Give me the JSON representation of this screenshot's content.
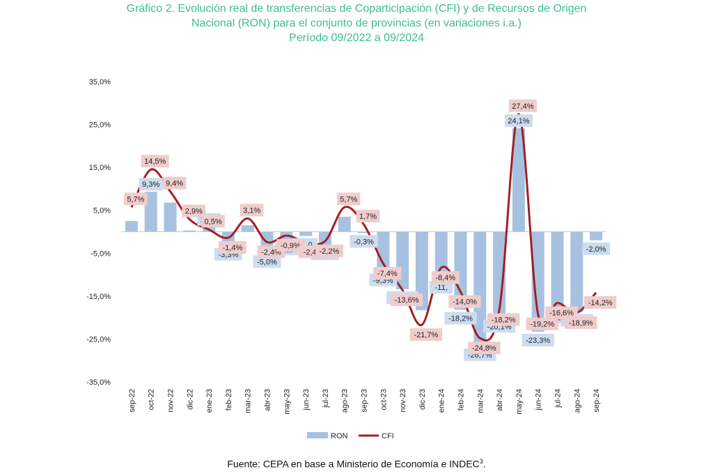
{
  "title_lines": [
    "Gráfico 2. Evolución real de transferencias de Coparticipación (CFI) y de Recursos de Origen",
    "Nacional (RON) para el conjunto de provincias (en variaciones i.a.)",
    "Período 09/2022 a 09/2024"
  ],
  "source": {
    "text": "Fuente: CEPA en base a Ministerio de Economía e INDEC",
    "sup": "3",
    "end": "."
  },
  "colors": {
    "title": "#3dbd8e",
    "ron_bar": "#a7c2e0",
    "cfi_line": "#a31e22",
    "ron_label_bg": "#cddcef",
    "cfi_label_bg": "#f0cccc"
  },
  "chart_data": {
    "type": "bar+line",
    "categories": [
      "sep-22",
      "oct-22",
      "nov-22",
      "dic-22",
      "ene-23",
      "feb-23",
      "mar-23",
      "abr-23",
      "may-23",
      "jun-23",
      "jul-23",
      "ago-23",
      "sep-23",
      "oct-23",
      "nov-23",
      "dic-23",
      "ene-24",
      "feb-24",
      "mar-24",
      "abr-24",
      "may-24",
      "jun-24",
      "jul-24",
      "ago-24",
      "sep-24"
    ],
    "series": [
      {
        "name": "RON",
        "type": "bar",
        "values": [
          2.5,
          9.3,
          6.8,
          0.3,
          1.1,
          -3.3,
          1.5,
          -5.0,
          -2.1,
          -1.0,
          -3.2,
          3.5,
          -0.3,
          -9.3,
          -13.4,
          -18.3,
          -11.0,
          -18.2,
          -26.7,
          -20.1,
          24.1,
          -23.3,
          -18.0,
          -18.7,
          -2.0
        ],
        "labels": [
          "",
          "9,3%",
          "",
          "",
          "1,1%",
          "-3,3%",
          "",
          "-5,0%",
          "-2,1",
          "-1,0",
          "-3,2%",
          "",
          "-0,3%",
          "-9,3%",
          "-13,4%",
          "",
          "-11,",
          "-18,2%",
          "-26,7%",
          "-20,1%",
          "24,1%",
          "-23,3%",
          "-18,",
          "-18,7%",
          "-2,0%"
        ]
      },
      {
        "name": "CFI",
        "type": "line",
        "values": [
          5.7,
          14.5,
          9.4,
          2.9,
          0.5,
          -1.4,
          3.1,
          -2.4,
          -0.9,
          -2.4,
          -2.2,
          5.7,
          1.7,
          -7.4,
          -13.6,
          -21.7,
          -8.4,
          -14.0,
          -24.8,
          -18.2,
          27.4,
          -19.2,
          -16.6,
          -18.9,
          -14.2
        ],
        "labels": [
          "5,7%",
          "14,5%",
          "9,4%",
          "2,9%",
          "0,5%",
          "-1,4%",
          "3,1%",
          "-2,4%",
          "-0,9%",
          "-2,4",
          "-2,2%",
          "5,7%",
          "1,7%",
          "-7,4%",
          "-13,6%",
          "-21,7%",
          "-8,4%",
          "-14,0%",
          "-24,8%",
          "-18,2%",
          "27,4%",
          "-19,2%",
          "-16,6%",
          "-18,9%",
          "-14,2%"
        ]
      }
    ],
    "yticks": [
      "35,0%",
      "25,0%",
      "15,0%",
      "5,0%",
      "-5,0%",
      "-15,0%",
      "-25,0%",
      "-35,0%"
    ],
    "ylim": [
      -35,
      35
    ],
    "legend": {
      "position": "bottom",
      "entries": [
        "RON",
        "CFI"
      ]
    },
    "grid": false
  }
}
